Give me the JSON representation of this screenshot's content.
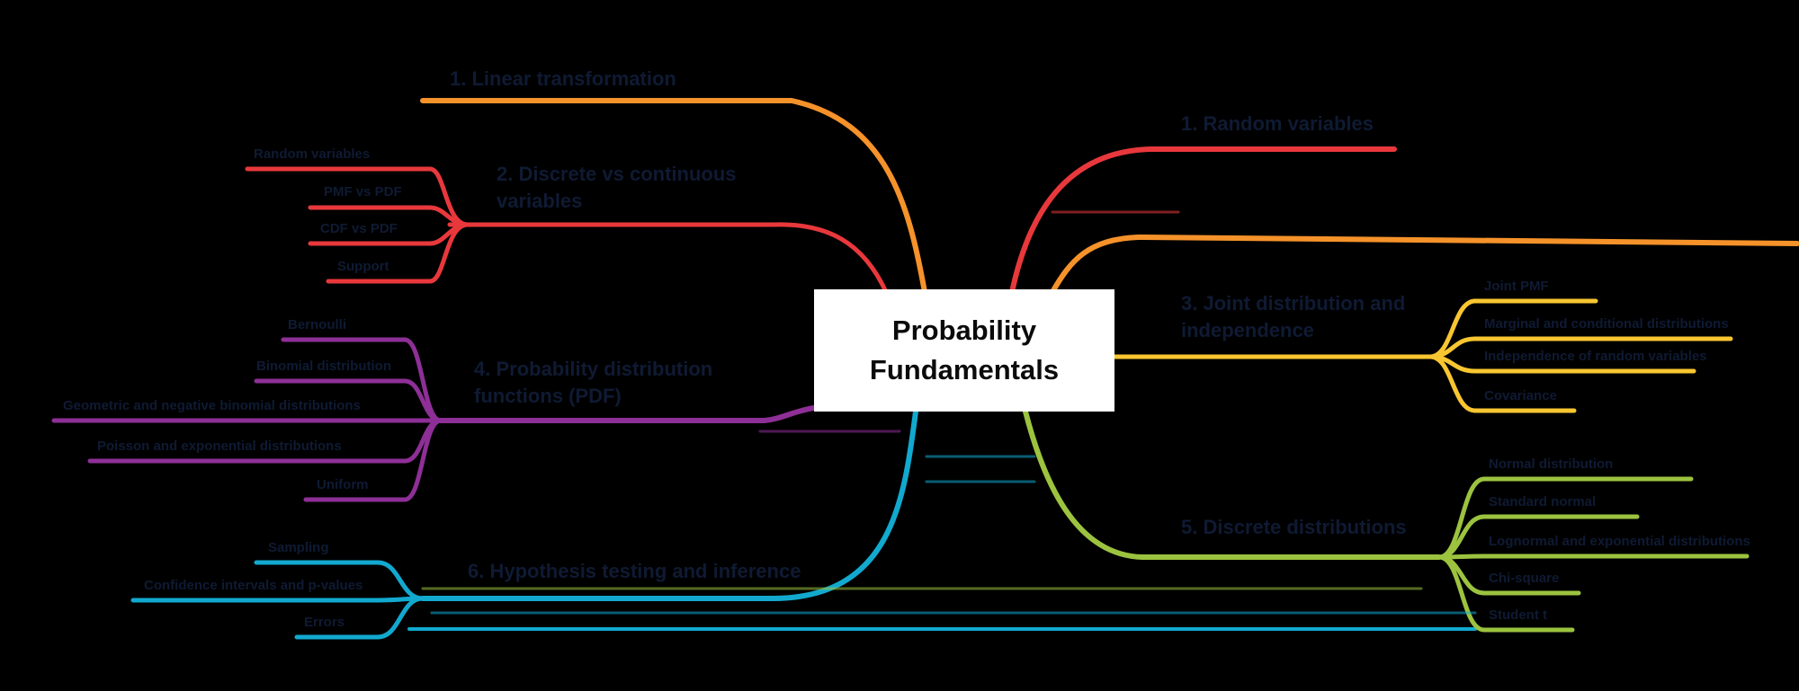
{
  "central_topic": {
    "line1": "Probability",
    "line2": "Fundamentals"
  },
  "branches": {
    "linear": {
      "label": "1. Linear transformation",
      "color": "#f5922a"
    },
    "random_variables": {
      "label": "1. Random variables",
      "color": "#e8383c"
    },
    "discrete_vs_continuous": {
      "label": "2. Discrete vs continuous",
      "label_line2": "variables",
      "color": "#e8383c",
      "leaves": [
        "Random variables",
        "PMF vs PDF",
        "CDF vs PDF",
        "Support"
      ]
    },
    "expectation": {
      "label": "",
      "color": "#f5922a"
    },
    "joint_distributions": {
      "label": "3. Joint distribution and",
      "label_line2": "independence",
      "color": "#f8c630",
      "leaves": [
        "Joint PMF",
        "Marginal and conditional distributions",
        "Independence of random variables",
        "Covariance"
      ]
    },
    "probability_distribution": {
      "label": "4. Probability distribution",
      "label_line2": "functions (PDF)",
      "color": "#8e2f97",
      "leaves": [
        "Bernoulli",
        "Binomial distribution",
        "Geometric and negative binomial distributions",
        "Poisson and exponential distributions",
        "Uniform"
      ]
    },
    "distributions": {
      "label": "5. Discrete distributions",
      "color": "#9cc33f",
      "leaves": [
        "Normal distribution",
        "Standard normal",
        "Lognormal and exponential distributions",
        "Chi-square",
        "Student t"
      ]
    },
    "hypothesis": {
      "label": "6. Hypothesis testing and inference",
      "color": "#12a9cf",
      "leaves": [
        "Sampling",
        "Confidence intervals and p-values",
        "Errors"
      ]
    }
  },
  "colors": {
    "background": "#000000",
    "center_box": "#ffffff",
    "text": "#0f1a33"
  }
}
